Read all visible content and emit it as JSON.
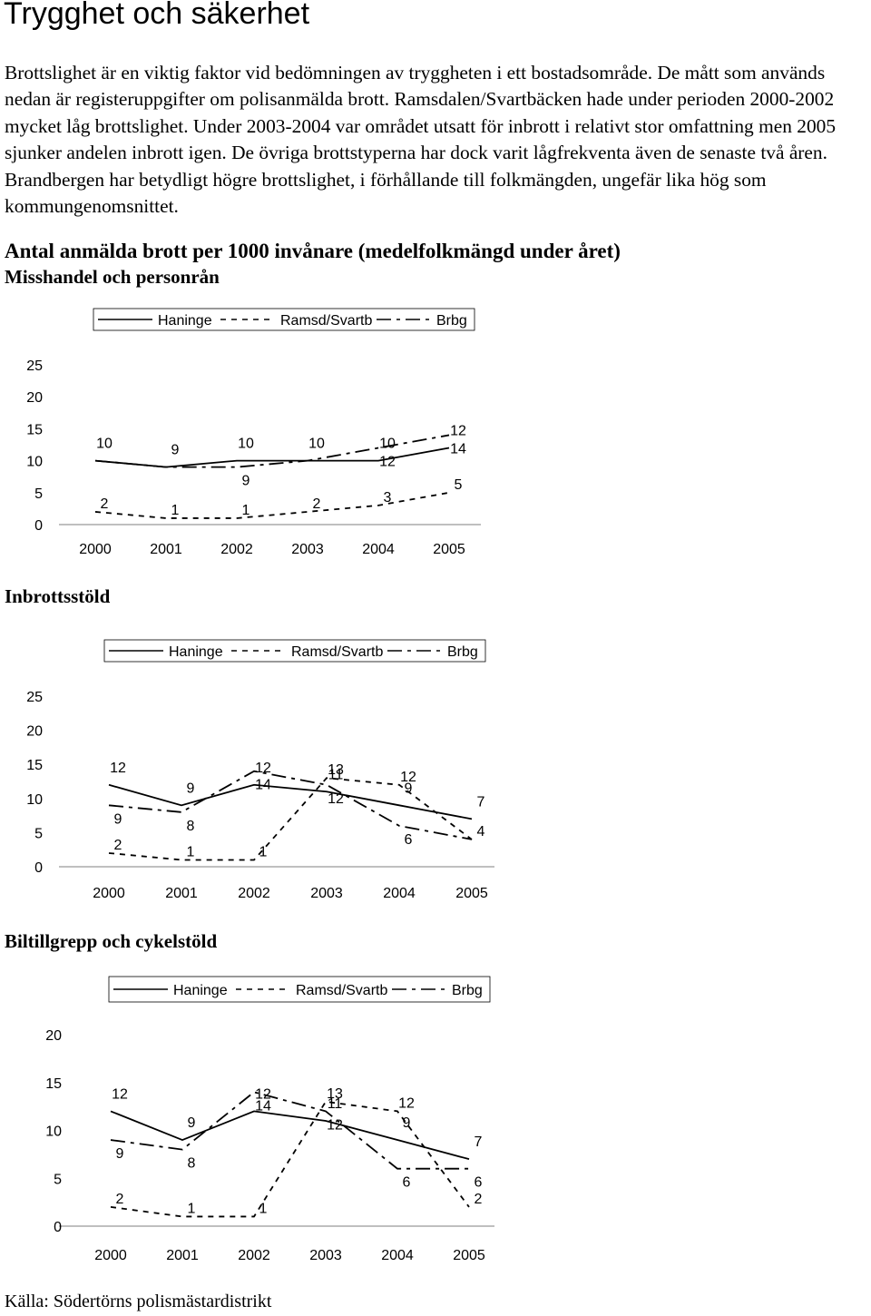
{
  "page": {
    "title": "Trygghet och säkerhet",
    "intro": "Brottslighet är en viktig faktor vid bedömningen av tryggheten i ett bostadsområde. De mått som används nedan är registeruppgifter om polisanmälda brott. Ramsdalen/Svartbäcken hade under perioden 2000-2002 mycket låg brottslighet. Under 2003-2004 var området utsatt för inbrott i relativt stor omfattning men 2005 sjunker andelen inbrott igen. De övriga brottstyperna har dock varit lågfrekventa även de senaste två åren. Brandbergen har betydligt högre brottslighet, i förhållande till folkmängden, ungefär lika hög som kommungenomsnittet.",
    "main_heading": "Antal anmälda brott per 1000 invånare (medelfolkmängd under året)",
    "source": "Källa: Södertörns polismästardistrikt"
  },
  "chart_data": [
    {
      "type": "line",
      "title": "Misshandel och personrån",
      "x": [
        "2000",
        "2001",
        "2002",
        "2003",
        "2004",
        "2005"
      ],
      "yticks": [
        "0",
        "5",
        "10",
        "15",
        "20",
        "25"
      ],
      "ylim": [
        0,
        25
      ],
      "legend_position": "top",
      "series": [
        {
          "name": "Haninge",
          "dash": "solid",
          "values": [
            10,
            9,
            10,
            10,
            10,
            12
          ],
          "labels": [
            "10",
            "9",
            "10",
            "10",
            "10",
            "12"
          ]
        },
        {
          "name": "Ramsd/Svartb",
          "dash": "dashed",
          "values": [
            2,
            1,
            1,
            2,
            3,
            5
          ],
          "labels": [
            "2",
            "1",
            "1",
            "2",
            "3",
            "5"
          ]
        },
        {
          "name": "Brbg",
          "dash": "dashdot",
          "values": [
            10,
            9,
            9,
            10,
            12,
            14
          ],
          "labels": [
            "",
            "",
            "9",
            "",
            "12",
            "14"
          ]
        }
      ]
    },
    {
      "type": "line",
      "title": "Inbrottsstöld",
      "x": [
        "2000",
        "2001",
        "2002",
        "2003",
        "2004",
        "2005"
      ],
      "yticks": [
        "0",
        "5",
        "10",
        "15",
        "20",
        "25"
      ],
      "ylim": [
        0,
        25
      ],
      "legend_position": "top",
      "series": [
        {
          "name": "Haninge",
          "dash": "solid",
          "values": [
            12,
            9,
            12,
            11,
            9,
            7
          ],
          "labels": [
            "12",
            "9",
            "12",
            "11",
            "9",
            "7"
          ]
        },
        {
          "name": "Ramsd/Svartb",
          "dash": "dashed",
          "values": [
            2,
            1,
            1,
            13,
            12,
            4
          ],
          "labels": [
            "2",
            "1",
            "1",
            "13",
            "12",
            "4"
          ]
        },
        {
          "name": "Brbg",
          "dash": "dashdot",
          "values": [
            9,
            8,
            14,
            12,
            6,
            4
          ],
          "labels": [
            "9",
            "8",
            "14",
            "12",
            "6",
            ""
          ]
        }
      ]
    },
    {
      "type": "line",
      "title": "Biltillgrepp och cykelstöld",
      "x": [
        "2000",
        "2001",
        "2002",
        "2003",
        "2004",
        "2005"
      ],
      "yticks": [
        "0",
        "5",
        "10",
        "15",
        "20"
      ],
      "ylim": [
        0,
        20
      ],
      "legend_position": "top",
      "series": [
        {
          "name": "Haninge",
          "dash": "solid",
          "values": [
            12,
            9,
            12,
            11,
            9,
            7
          ],
          "labels": [
            "12",
            "9",
            "12",
            "11",
            "9",
            "7"
          ]
        },
        {
          "name": "Ramsd/Svartb",
          "dash": "dashed",
          "values": [
            2,
            1,
            1,
            13,
            12,
            2
          ],
          "labels": [
            "2",
            "1",
            "1",
            "13",
            "12",
            "2"
          ]
        },
        {
          "name": "Brbg",
          "dash": "dashdot",
          "values": [
            9,
            8,
            14,
            12,
            6,
            6
          ],
          "labels": [
            "9",
            "8",
            "14",
            "12",
            "6",
            "6"
          ]
        }
      ]
    }
  ]
}
